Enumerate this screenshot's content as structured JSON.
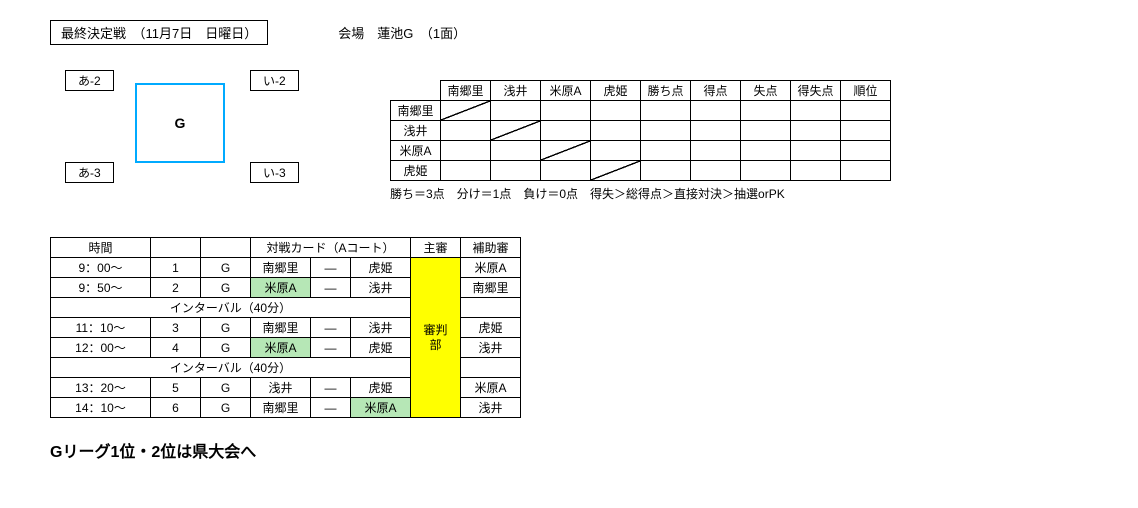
{
  "header": {
    "title": "最終決定戦　（11月7日　日曜日）",
    "venue": "会場　蓮池G　（1面）"
  },
  "diagram": {
    "topLeft": "あ-2",
    "topRight": "い-2",
    "bottomLeft": "あ-3",
    "bottomRight": "い-3",
    "field": "G"
  },
  "teams": [
    "南郷里",
    "浅井",
    "米原A",
    "虎姫"
  ],
  "standingsHeaders": [
    "南郷里",
    "浅井",
    "米原A",
    "虎姫",
    "勝ち点",
    "得点",
    "失点",
    "得失点",
    "順位"
  ],
  "scoringNote": "勝ち＝3点　分け＝1点　負け＝0点　得失＞総得点＞直接対決＞抽選orPK",
  "scheduleHeaders": {
    "time": "時間",
    "card": "対戦カード（Aコート）",
    "main": "主審",
    "asst": "補助審"
  },
  "schedule": [
    {
      "time": "9：00～",
      "num": "1",
      "grp": "G",
      "home": "南郷里",
      "vs": "―",
      "away": "虎姫",
      "asst": "米原A",
      "homeHl": false,
      "awayHl": false,
      "asstBold": true
    },
    {
      "time": "9：50～",
      "num": "2",
      "grp": "G",
      "home": "米原A",
      "vs": "―",
      "away": "浅井",
      "asst": "南郷里",
      "homeHl": true,
      "awayHl": false,
      "asstBold": false
    },
    {
      "interval": "インターバル（40分）"
    },
    {
      "time": "11：10～",
      "num": "3",
      "grp": "G",
      "home": "南郷里",
      "vs": "―",
      "away": "浅井",
      "asst": "虎姫",
      "homeHl": false,
      "awayHl": false,
      "asstBold": false
    },
    {
      "time": "12：00～",
      "num": "4",
      "grp": "G",
      "home": "米原A",
      "vs": "―",
      "away": "虎姫",
      "asst": "浅井",
      "homeHl": true,
      "awayHl": false,
      "asstBold": false
    },
    {
      "interval": "インターバル（40分）"
    },
    {
      "time": "13：20～",
      "num": "5",
      "grp": "G",
      "home": "浅井",
      "vs": "―",
      "away": "虎姫",
      "asst": "米原A",
      "homeHl": false,
      "awayHl": false,
      "asstBold": true
    },
    {
      "time": "14：10～",
      "num": "6",
      "grp": "G",
      "home": "南郷里",
      "vs": "―",
      "away": "米原A",
      "asst": "浅井",
      "homeHl": false,
      "awayHl": true,
      "asstBold": false
    }
  ],
  "mainRefLabel": "審判部",
  "promo": "Gリーグ1位・2位は県大会へ"
}
